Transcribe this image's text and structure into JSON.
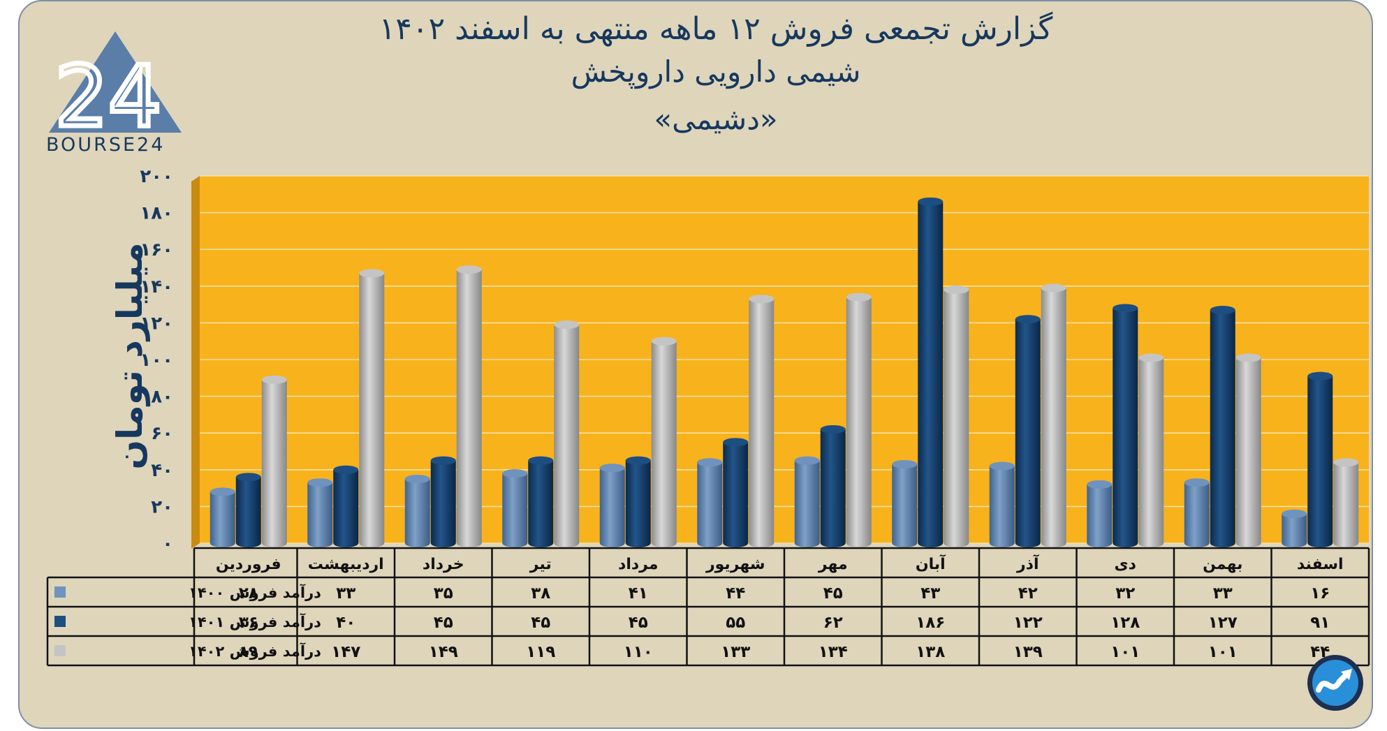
{
  "title_line1": "گزارش تجمعی فروش ۱۲ ماهه منتهی به اسفند ۱۴۰۲",
  "title_line2": "شیمی دارویی داروپخش",
  "title_line3": "«دشیمی»",
  "logo": {
    "text": "BOURSE24",
    "mark": "24"
  },
  "badge_icon": "trend-arrow-icon",
  "colors": {
    "plot_bg": "#f8b21c",
    "card_bg": "#ded5bb",
    "s1400": "#5a7ea8",
    "s1401": "#143c67",
    "s1402": "#b0b0b0",
    "title": "#17385e"
  },
  "chart_data": {
    "type": "bar",
    "ylabel": "میلیارد تومان",
    "ylim": [
      0,
      200
    ],
    "yticks": [
      0,
      20,
      40,
      60,
      80,
      100,
      120,
      140,
      160,
      180,
      200
    ],
    "ytick_labels": [
      "۰",
      "۲۰",
      "۴۰",
      "۶۰",
      "۸۰",
      "۱۰۰",
      "۱۲۰",
      "۱۴۰",
      "۱۶۰",
      "۱۸۰",
      "۲۰۰"
    ],
    "grid": true,
    "legend": "table-left",
    "categories": [
      "فروردین",
      "اردیبهشت",
      "خرداد",
      "تیر",
      "مرداد",
      "شهریور",
      "مهر",
      "آبان",
      "آذر",
      "دی",
      "بهمن",
      "اسفند"
    ],
    "series": [
      {
        "name": "درآمد فروش ۱۴۰۰",
        "values": [
          28,
          33,
          35,
          38,
          41,
          44,
          45,
          43,
          42,
          32,
          33,
          16
        ],
        "labels": [
          "۲۸",
          "۳۳",
          "۳۵",
          "۳۸",
          "۴۱",
          "۴۴",
          "۴۵",
          "۴۳",
          "۴۲",
          "۳۲",
          "۳۳",
          "۱۶"
        ]
      },
      {
        "name": "درآمد فروش ۱۴۰۱",
        "values": [
          36,
          40,
          45,
          45,
          45,
          55,
          62,
          186,
          122,
          128,
          127,
          91
        ],
        "labels": [
          "۳۶",
          "۴۰",
          "۴۵",
          "۴۵",
          "۴۵",
          "۵۵",
          "۶۲",
          "۱۸۶",
          "۱۲۲",
          "۱۲۸",
          "۱۲۷",
          "۹۱"
        ]
      },
      {
        "name": "درآمد فروش ۱۴۰۲",
        "values": [
          89,
          147,
          149,
          119,
          110,
          133,
          134,
          138,
          139,
          101,
          101,
          44
        ],
        "labels": [
          "۸۹",
          "۱۴۷",
          "۱۴۹",
          "۱۱۹",
          "۱۱۰",
          "۱۳۳",
          "۱۳۴",
          "۱۳۸",
          "۱۳۹",
          "۱۰۱",
          "۱۰۱",
          "۴۴"
        ]
      }
    ]
  }
}
